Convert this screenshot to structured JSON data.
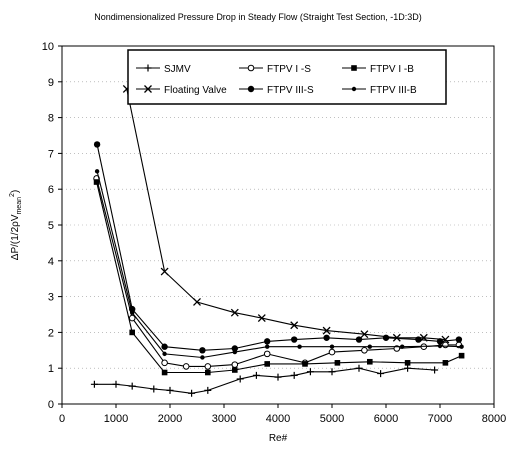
{
  "chart_data": {
    "type": "line",
    "title": "Nondimensionalized Pressure Drop in Steady Flow (Straight Test Section, -1D:3D)",
    "xlabel": "Re#",
    "ylabel": "ΔP/(1/2ρV",
    "ylabel_sub": "mean",
    "ylabel_sup": "2",
    "ylabel_close": ")",
    "xlim": [
      0,
      8000
    ],
    "ylim": [
      0,
      10
    ],
    "xticks": [
      0,
      1000,
      2000,
      3000,
      4000,
      5000,
      6000,
      7000,
      8000
    ],
    "yticks": [
      0,
      1,
      2,
      3,
      4,
      5,
      6,
      7,
      8,
      9,
      10
    ],
    "grid": "dotted",
    "legend_position": "top",
    "series": [
      {
        "name": "SJMV",
        "marker": "plus",
        "x": [
          600,
          1000,
          1300,
          1700,
          2000,
          2400,
          2700,
          3300,
          3600,
          4000,
          4300,
          4600,
          5000,
          5500,
          5900,
          6400,
          6900
        ],
        "y": [
          0.55,
          0.55,
          0.5,
          0.42,
          0.38,
          0.3,
          0.38,
          0.7,
          0.8,
          0.75,
          0.8,
          0.9,
          0.9,
          1.0,
          0.85,
          1.0,
          0.95
        ]
      },
      {
        "name": "FTPV I -S",
        "marker": "circle-open",
        "x": [
          640,
          1300,
          1900,
          2300,
          2700,
          3200,
          3800,
          4500,
          5000,
          5600,
          6200,
          6700,
          7100,
          7350
        ],
        "y": [
          6.3,
          2.4,
          1.15,
          1.05,
          1.05,
          1.1,
          1.4,
          1.15,
          1.45,
          1.5,
          1.55,
          1.6,
          1.65,
          1.65
        ]
      },
      {
        "name": "FTPV I -B",
        "marker": "square",
        "x": [
          640,
          1300,
          1900,
          2700,
          3200,
          3800,
          4500,
          5100,
          5700,
          6400,
          7100,
          7400
        ],
        "y": [
          6.2,
          2.0,
          0.88,
          0.88,
          0.95,
          1.12,
          1.12,
          1.15,
          1.18,
          1.15,
          1.15,
          1.35
        ]
      },
      {
        "name": "Floating Valve",
        "marker": "x",
        "x": [
          1200,
          1900,
          2500,
          3200,
          3700,
          4300,
          4900,
          5600,
          6200,
          6700,
          7100
        ],
        "y": [
          8.8,
          3.7,
          2.85,
          2.55,
          2.4,
          2.2,
          2.05,
          1.95,
          1.85,
          1.85,
          1.8
        ]
      },
      {
        "name": "FTPV III-S",
        "marker": "circle-filled",
        "x": [
          650,
          1300,
          1900,
          2600,
          3200,
          3800,
          4300,
          4900,
          5500,
          6000,
          6600,
          7000,
          7350
        ],
        "y": [
          7.25,
          2.65,
          1.6,
          1.5,
          1.55,
          1.75,
          1.8,
          1.85,
          1.8,
          1.85,
          1.8,
          1.75,
          1.8
        ]
      },
      {
        "name": "FTPV III-B",
        "marker": "dot",
        "x": [
          650,
          1300,
          1900,
          2600,
          3200,
          3800,
          4400,
          5000,
          5700,
          6300,
          7000,
          7400
        ],
        "y": [
          6.5,
          2.55,
          1.4,
          1.3,
          1.45,
          1.6,
          1.6,
          1.6,
          1.6,
          1.6,
          1.62,
          1.6
        ]
      }
    ]
  }
}
